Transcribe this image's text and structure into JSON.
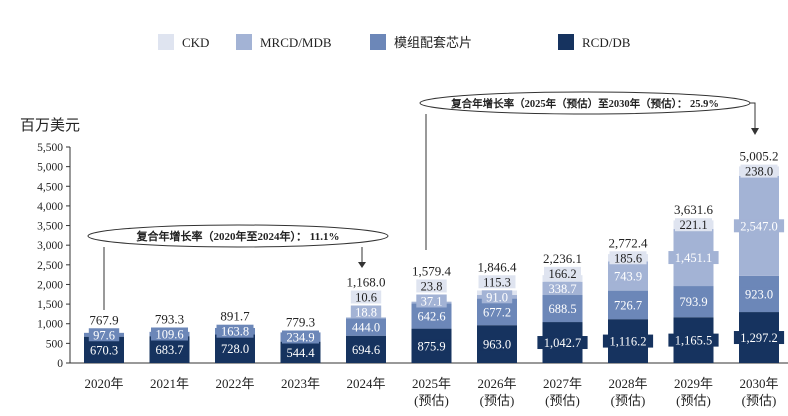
{
  "chart_data": {
    "type": "bar",
    "stacked": true,
    "ylabel": "百万美元",
    "ylim": [
      0,
      5500
    ],
    "yticks": [
      "0",
      "500",
      "1,000",
      "1,500",
      "2,000",
      "2,500",
      "3,000",
      "3,500",
      "4,000",
      "4,500",
      "5,000",
      "5,500"
    ],
    "ytick_values": [
      0,
      500,
      1000,
      1500,
      2000,
      2500,
      3000,
      3500,
      4000,
      4500,
      5000,
      5500
    ],
    "categories": [
      "2020年",
      "2021年",
      "2022年",
      "2023年",
      "2024年",
      "2025年",
      "2026年",
      "2027年",
      "2028年",
      "2029年",
      "2030年"
    ],
    "category_sub": [
      "",
      "",
      "",
      "",
      "",
      "(预估)",
      "(预估)",
      "(预估)",
      "(预估)",
      "(预估)",
      "(预估)"
    ],
    "legend_position": "top",
    "series": [
      {
        "name": "RCD/DB",
        "color": "#16335f",
        "values": [
          670.3,
          683.7,
          728.0,
          544.4,
          694.6,
          875.9,
          963.0,
          1042.7,
          1116.2,
          1165.5,
          1297.2
        ],
        "labels": [
          "670.3",
          "683.7",
          "728.0",
          "544.4",
          "694.6",
          "875.9",
          "963.0",
          "1,042.7",
          "1,116.2",
          "1,165.5",
          "1,297.2"
        ]
      },
      {
        "name": "模组配套芯片",
        "color": "#6c87b8",
        "values": [
          97.6,
          109.6,
          163.8,
          234.9,
          444.0,
          642.6,
          677.2,
          688.5,
          726.7,
          793.9,
          923.0
        ],
        "labels": [
          "97.6",
          "109.6",
          "163.8",
          "234.9",
          "444.0",
          "642.6",
          "677.2",
          "688.5",
          "726.7",
          "793.9",
          "923.0"
        ]
      },
      {
        "name": "MRCD/MDB",
        "color": "#a3b3d5",
        "values": [
          0,
          0,
          0,
          0,
          18.8,
          37.1,
          91.0,
          338.7,
          743.9,
          1451.1,
          2547.0
        ],
        "labels": [
          "",
          "",
          "",
          "",
          "18.8",
          "37.1",
          "91.0",
          "338.7",
          "743.9",
          "1,451.1",
          "2,547.0"
        ]
      },
      {
        "name": "CKD",
        "color": "#dfe4f0",
        "values": [
          0,
          0,
          0,
          0,
          10.6,
          23.8,
          115.3,
          166.2,
          185.6,
          221.1,
          238.0
        ],
        "labels": [
          "",
          "",
          "",
          "",
          "10.6",
          "23.8",
          "115.3",
          "166.2",
          "185.6",
          "221.1",
          "238.0"
        ]
      }
    ],
    "totals": [
      "767.9",
      "793.3",
      "891.7",
      "779.3",
      "1,168.0",
      "1,579.4",
      "1,846.4",
      "2,236.1",
      "2,772.4",
      "3,631.6",
      "5,005.2"
    ],
    "legend_order": [
      "CKD",
      "MRCD/MDB",
      "模组配套芯片",
      "RCD/DB"
    ],
    "annotations": [
      {
        "text": "复合年增长率（2020年至2024年）： 11.1%",
        "from": 0,
        "to": 4
      },
      {
        "text": "复合年增长率（2025年（预估）至2030年（预估）： 25.9%",
        "from": 5,
        "to": 10
      }
    ]
  }
}
